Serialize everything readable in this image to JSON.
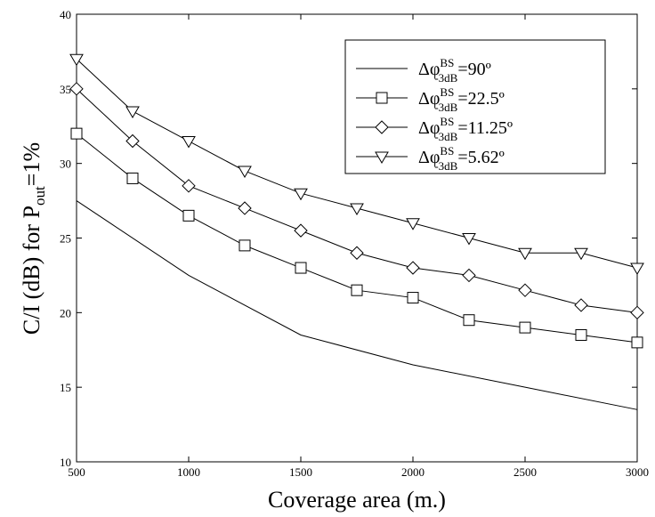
{
  "chart_data": {
    "type": "line",
    "xlabel": "Coverage area (m.)",
    "ylabel": {
      "main": "C/I (dB) for P",
      "sub": "out",
      "tail": "=1%"
    },
    "xlim": [
      500,
      3000
    ],
    "ylim": [
      10,
      40
    ],
    "x_ticks": [
      500,
      1000,
      1500,
      2000,
      2500,
      3000
    ],
    "y_ticks": [
      10,
      15,
      20,
      25,
      30,
      35,
      40
    ],
    "grid": false,
    "legend_position": "top-right",
    "series": [
      {
        "name": {
          "pre": "Δφ",
          "sup": "BS",
          "sub": "-3dB",
          "post": "=90º"
        },
        "marker": "none",
        "x": [
          500,
          1000,
          1500,
          2000,
          2500,
          3000
        ],
        "y": [
          27.5,
          22.5,
          18.5,
          16.5,
          15.0,
          13.5
        ]
      },
      {
        "name": {
          "pre": "Δφ",
          "sup": "BS",
          "sub": "-3dB",
          "post": "=22.5º"
        },
        "marker": "square",
        "x": [
          500,
          750,
          1000,
          1250,
          1500,
          1750,
          2000,
          2250,
          2500,
          2750,
          3000
        ],
        "y": [
          32,
          29,
          26.5,
          24.5,
          23,
          21.5,
          21,
          19.5,
          19,
          18.5,
          18
        ]
      },
      {
        "name": {
          "pre": "Δφ",
          "sup": "BS",
          "sub": "-3dB",
          "post": "=11.25º"
        },
        "marker": "diamond",
        "x": [
          500,
          750,
          1000,
          1250,
          1500,
          1750,
          2000,
          2250,
          2500,
          2750,
          3000
        ],
        "y": [
          35,
          31.5,
          28.5,
          27,
          25.5,
          24,
          23,
          22.5,
          21.5,
          20.5,
          20
        ]
      },
      {
        "name": {
          "pre": "Δφ",
          "sup": "BS",
          "sub": "-3dB",
          "post": "=5.62º"
        },
        "marker": "triangle-down",
        "x": [
          500,
          750,
          1000,
          1250,
          1500,
          1750,
          2000,
          2250,
          2500,
          2750,
          3000
        ],
        "y": [
          37,
          33.5,
          31.5,
          29.5,
          28,
          27,
          26,
          25,
          24,
          24,
          23
        ]
      }
    ]
  }
}
